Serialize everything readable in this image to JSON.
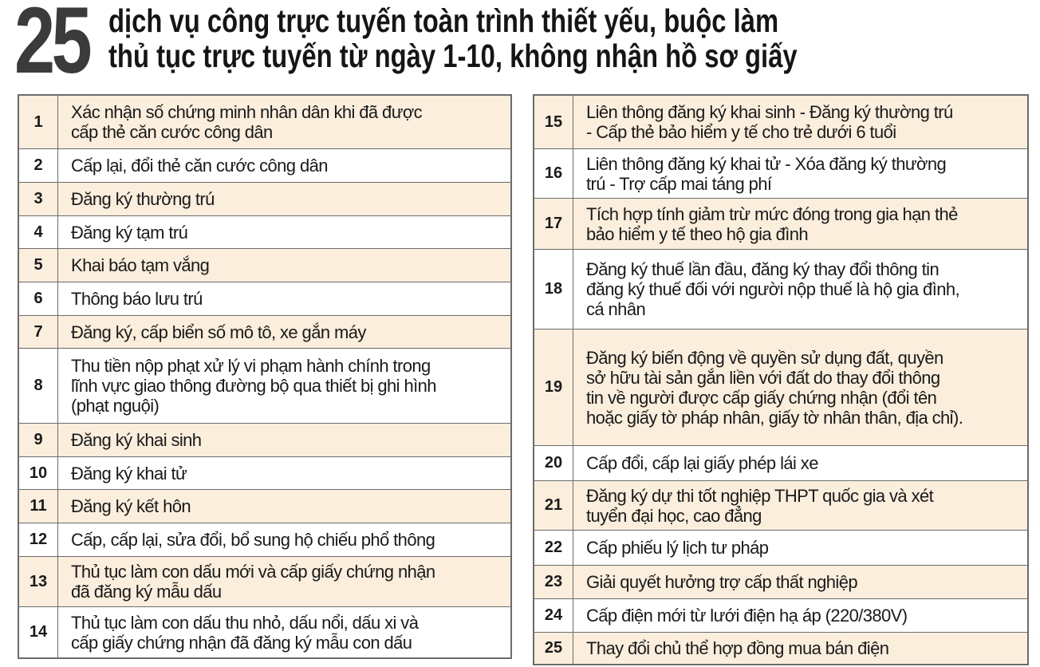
{
  "header": {
    "number": "25",
    "title_line1": "dịch vụ công trực tuyến toàn trình thiết yếu, buộc làm",
    "title_line2": "thủ tục trực tuyến từ ngày 1-10, không nhận hồ sơ giấy"
  },
  "colors": {
    "row_alt": "#fbeedd",
    "border": "#6b6b6b",
    "big_number": "#3b3b3b"
  },
  "left_services": [
    {
      "no": "1",
      "lines": [
        "Xác nhận số chứng minh nhân dân khi đã được",
        "cấp thẻ căn cước công dân"
      ]
    },
    {
      "no": "2",
      "lines": [
        "Cấp lại, đổi thẻ căn cước công dân"
      ]
    },
    {
      "no": "3",
      "lines": [
        "Đăng ký thường trú"
      ]
    },
    {
      "no": "4",
      "lines": [
        "Đăng ký tạm trú"
      ]
    },
    {
      "no": "5",
      "lines": [
        "Khai báo tạm vắng"
      ]
    },
    {
      "no": "6",
      "lines": [
        "Thông báo lưu trú"
      ]
    },
    {
      "no": "7",
      "lines": [
        "Đăng ký, cấp biển số mô tô, xe gắn máy"
      ]
    },
    {
      "no": "8",
      "lines": [
        "Thu tiền nộp phạt xử lý vi phạm hành chính trong",
        "lĩnh vực giao thông đường bộ qua thiết bị ghi hình",
        "(phạt nguội)"
      ]
    },
    {
      "no": "9",
      "lines": [
        "Đăng ký khai sinh"
      ]
    },
    {
      "no": "10",
      "lines": [
        "Đăng ký khai tử"
      ]
    },
    {
      "no": "11",
      "lines": [
        "Đăng ký kết hôn"
      ]
    },
    {
      "no": "12",
      "lines": [
        "Cấp, cấp lại, sửa đổi, bổ sung hộ chiếu phổ thông"
      ]
    },
    {
      "no": "13",
      "lines": [
        "Thủ tục làm con dấu mới và cấp giấy chứng nhận",
        "đã đăng ký mẫu dấu"
      ]
    },
    {
      "no": "14",
      "lines": [
        "Thủ tục làm con dấu thu nhỏ, dấu nổi, dấu xi và",
        "cấp giấy chứng nhận đã đăng ký mẫu con dấu"
      ]
    }
  ],
  "right_services": [
    {
      "no": "15",
      "lines": [
        "Liên thông đăng ký khai sinh - Đăng ký thường trú",
        "- Cấp thẻ bảo hiểm y tế cho trẻ dưới 6 tuổi"
      ]
    },
    {
      "no": "16",
      "lines": [
        "Liên thông đăng ký khai tử - Xóa đăng ký thường",
        "trú - Trợ cấp mai táng phí"
      ]
    },
    {
      "no": "17",
      "lines": [
        "Tích hợp tính giảm trừ mức đóng trong gia hạn thẻ",
        "bảo hiểm y tế theo hộ gia đình"
      ]
    },
    {
      "no": "18",
      "lines": [
        "Đăng ký thuế lần đầu, đăng ký thay đổi thông tin",
        "đăng ký thuế đối với người nộp thuế là hộ gia đình,",
        "cá nhân"
      ]
    },
    {
      "no": "19",
      "lines": [
        "Đăng ký biến động về quyền sử dụng đất, quyền",
        "sở hữu tài sản gắn liền với đất do thay đổi thông",
        "tin về người được cấp giấy chứng nhận (đổi tên",
        "hoặc giấy tờ pháp nhân, giấy tờ nhân thân, địa chỉ)."
      ]
    },
    {
      "no": "20",
      "lines": [
        "Cấp đổi, cấp lại giấy phép lái xe"
      ]
    },
    {
      "no": "21",
      "lines": [
        "Đăng ký dự thi tốt nghiệp THPT quốc gia và xét",
        "tuyển đại học, cao đẳng"
      ]
    },
    {
      "no": "22",
      "lines": [
        "Cấp phiếu lý lịch tư pháp"
      ]
    },
    {
      "no": "23",
      "lines": [
        "Giải quyết hưởng trợ cấp thất nghiệp"
      ]
    },
    {
      "no": "24",
      "lines": [
        "Cấp điện mới từ lưới điện hạ áp (220/380V)"
      ]
    },
    {
      "no": "25",
      "lines": [
        "Thay đổi chủ thể hợp đồng mua bán điện"
      ]
    }
  ]
}
